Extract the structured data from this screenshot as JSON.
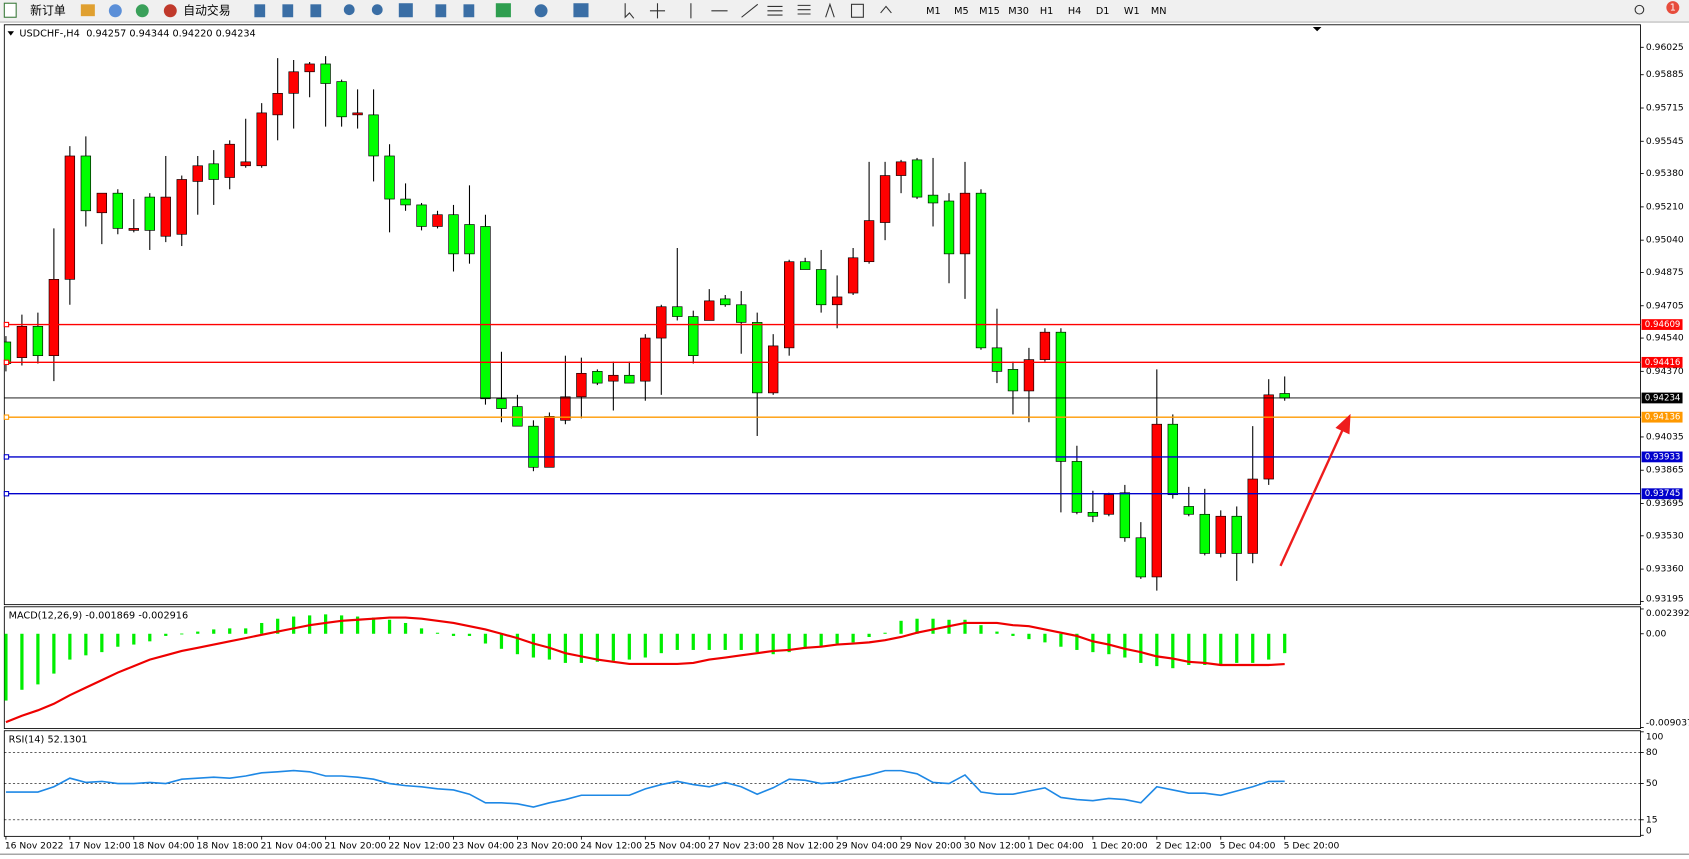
{
  "toolbar": {
    "new_order": "新订单",
    "auto_trading": "自动交易",
    "timeframes": [
      "M1",
      "M5",
      "M15",
      "M30",
      "H1",
      "H4",
      "D1",
      "W1",
      "MN"
    ],
    "notifications": "1"
  },
  "chart_data": [
    {
      "type": "candlestick",
      "title": "USDCHF-,H4",
      "subtitle": "0.94257 0.94344 0.94220 0.94234",
      "categories": [
        "16 Nov 2022",
        null,
        null,
        null,
        "17 Nov 12:00",
        null,
        null,
        null,
        "18 Nov 04:00",
        null,
        null,
        null,
        "18 Nov 18:00",
        null,
        null,
        null,
        "21 Nov 04:00",
        null,
        null,
        null,
        "21 Nov 20:00",
        null,
        null,
        null,
        "22 Nov 12:00",
        null,
        null,
        null,
        "23 Nov 04:00",
        null,
        null,
        null,
        "23 Nov 20:00",
        null,
        null,
        null,
        "24 Nov 12:00",
        null,
        null,
        null,
        "25 Nov 04:00",
        null,
        null,
        null,
        "27 Nov 23:00",
        null,
        null,
        null,
        "28 Nov 12:00",
        null,
        null,
        null,
        "29 Nov 04:00",
        null,
        null,
        null,
        "29 Nov 20:00",
        null,
        null,
        null,
        "30 Nov 12:00",
        null,
        null,
        null,
        "1 Dec 04:00",
        null,
        null,
        null,
        "1 Dec 20:00",
        null,
        null,
        null,
        "2 Dec 12:00",
        null,
        null,
        null,
        "5 Dec 04:00",
        null,
        null,
        null,
        "5 Dec 20:00"
      ],
      "open": [
        0.9452,
        0.9444,
        0.946,
        0.9445,
        0.9484,
        0.9547,
        0.9518,
        0.9528,
        0.9509,
        0.9526,
        0.9506,
        0.9507,
        0.9534,
        0.9543,
        0.9536,
        0.9542,
        0.9542,
        0.9568,
        0.9579,
        0.959,
        0.9594,
        0.9585,
        0.9568,
        0.9568,
        0.9547,
        0.9525,
        0.9522,
        0.9511,
        0.9517,
        0.9512,
        0.9511,
        0.9423,
        0.9419,
        0.9409,
        0.9388,
        0.9412,
        0.9424,
        0.9437,
        0.9432,
        0.9435,
        0.9432,
        0.9454,
        0.947,
        0.9465,
        0.9463,
        0.9474,
        0.9471,
        0.9462,
        0.9426,
        0.9449,
        0.9493,
        0.9489,
        0.9471,
        0.9477,
        0.9493,
        0.9513,
        0.9537,
        0.9545,
        0.9527,
        0.9524,
        0.9497,
        0.9528,
        0.9449,
        0.9438,
        0.9427,
        0.9443,
        0.9457,
        0.9391,
        0.9365,
        0.9364,
        0.9375,
        0.9352,
        0.9332,
        0.941,
        0.9368,
        0.9364,
        0.9344,
        0.9363,
        0.9344,
        0.9382,
        0.94257
      ],
      "high": [
        0.9455,
        0.9466,
        0.9467,
        0.951,
        0.9552,
        0.9557,
        0.9528,
        0.953,
        0.9525,
        0.9528,
        0.9547,
        0.9537,
        0.9547,
        0.955,
        0.9555,
        0.9566,
        0.9574,
        0.9597,
        0.9596,
        0.9595,
        0.9598,
        0.9586,
        0.9581,
        0.9581,
        0.9553,
        0.9533,
        0.9523,
        0.9519,
        0.9522,
        0.9532,
        0.9517,
        0.9447,
        0.9425,
        0.9412,
        0.9416,
        0.9445,
        0.9444,
        0.9438,
        0.9442,
        0.9442,
        0.9456,
        0.9471,
        0.95,
        0.9468,
        0.9479,
        0.9476,
        0.9478,
        0.9467,
        0.9456,
        0.9494,
        0.9495,
        0.9499,
        0.9486,
        0.95,
        0.9544,
        0.9544,
        0.9545,
        0.9546,
        0.9546,
        0.9528,
        0.9544,
        0.953,
        0.9469,
        0.9442,
        0.9449,
        0.9459,
        0.9459,
        0.9399,
        0.9376,
        0.9375,
        0.9379,
        0.936,
        0.9438,
        0.9415,
        0.9378,
        0.9377,
        0.9366,
        0.9368,
        0.9409,
        0.9433,
        0.94344
      ],
      "low": [
        0.9437,
        0.944,
        0.9441,
        0.9432,
        0.9471,
        0.9511,
        0.9502,
        0.9507,
        0.9508,
        0.9499,
        0.9503,
        0.9501,
        0.9517,
        0.9522,
        0.953,
        0.9541,
        0.9541,
        0.9555,
        0.9561,
        0.9577,
        0.9562,
        0.9562,
        0.9561,
        0.9534,
        0.9508,
        0.9519,
        0.9509,
        0.951,
        0.9488,
        0.9492,
        0.942,
        0.9411,
        0.9409,
        0.9386,
        0.9388,
        0.941,
        0.9413,
        0.943,
        0.9417,
        0.9431,
        0.9422,
        0.9425,
        0.9463,
        0.9441,
        0.9463,
        0.947,
        0.9446,
        0.9404,
        0.9425,
        0.9445,
        0.9489,
        0.9467,
        0.9459,
        0.9476,
        0.9492,
        0.9504,
        0.9528,
        0.9525,
        0.9511,
        0.9482,
        0.9474,
        0.9448,
        0.9431,
        0.9415,
        0.9411,
        0.9442,
        0.9365,
        0.9364,
        0.936,
        0.9363,
        0.935,
        0.9331,
        0.9325,
        0.9372,
        0.9363,
        0.9343,
        0.9342,
        0.933,
        0.9339,
        0.9379,
        0.9422
      ],
      "close": [
        0.9441,
        0.946,
        0.9445,
        0.9484,
        0.9547,
        0.9519,
        0.9528,
        0.951,
        0.951,
        0.9509,
        0.9526,
        0.9535,
        0.9542,
        0.9535,
        0.9553,
        0.9544,
        0.9569,
        0.9579,
        0.959,
        0.9594,
        0.9584,
        0.9567,
        0.9569,
        0.9547,
        0.9525,
        0.9522,
        0.9511,
        0.9517,
        0.9497,
        0.9497,
        0.9423,
        0.9418,
        0.9409,
        0.9388,
        0.9414,
        0.9424,
        0.9436,
        0.9431,
        0.9435,
        0.9431,
        0.9454,
        0.947,
        0.9465,
        0.9445,
        0.9473,
        0.9471,
        0.9462,
        0.9426,
        0.945,
        0.9493,
        0.9489,
        0.9471,
        0.9475,
        0.9495,
        0.9514,
        0.9537,
        0.9544,
        0.9526,
        0.9523,
        0.9497,
        0.9528,
        0.9449,
        0.9437,
        0.9427,
        0.9443,
        0.9457,
        0.9391,
        0.9365,
        0.9363,
        0.9374,
        0.9352,
        0.9332,
        0.941,
        0.9374,
        0.9364,
        0.9344,
        0.9363,
        0.9344,
        0.9382,
        0.9425,
        0.94234
      ],
      "up_color": "#ff0000",
      "down_color": "#00ff00",
      "price_line_color": "#000000",
      "ylim": [
        0.93184,
        0.96129
      ],
      "yticks": [
        0.96025,
        0.95885,
        0.95715,
        0.95545,
        {
          "value": 0.9538,
          "label": "0.95380"
        },
        {
          "value": 0.9521,
          "label": "0.95210"
        },
        {
          "value": 0.9504,
          "label": "0.95040"
        },
        0.94875,
        0.94705,
        {
          "value": 0.9454,
          "label": "0.94540"
        },
        {
          "value": 0.9437,
          "label": "0.94370"
        },
        0.94035,
        0.93865,
        0.93695,
        {
          "value": 0.9353,
          "label": "0.93530"
        },
        {
          "value": 0.9336,
          "label": "0.93360"
        },
        0.93195
      ],
      "levels": [
        {
          "value": 0.94609,
          "color": "#ff0000"
        },
        {
          "value": 0.94416,
          "color": "#ff0000"
        },
        {
          "value": 0.94136,
          "color": "#ff9900"
        },
        {
          "value": 0.93933,
          "color": "#0000cc"
        },
        {
          "value": 0.93745,
          "color": "#0000cc"
        }
      ]
    },
    {
      "type": "macd",
      "title": "MACD(12,26,9)",
      "color": "#00ee00",
      "signal_color": "#ee0000",
      "values": [
        -0.00644,
        -0.0054,
        -0.00488,
        -0.00384,
        -0.00249,
        -0.00208,
        -0.00177,
        -0.00125,
        -0.00104,
        -0.00073,
        -0.00021,
        2e-05,
        0.00021,
        0.00042,
        0.00052,
        0.00052,
        0.00104,
        0.00145,
        0.00166,
        0.00177,
        0.00187,
        0.00177,
        0.00166,
        0.00156,
        0.00135,
        0.00104,
        0.00052,
        0.0001,
        -0.00021,
        -0.00021,
        -0.00094,
        -0.00145,
        -0.00197,
        -0.00229,
        -0.00249,
        -0.00281,
        -0.00281,
        -0.0027,
        -0.0026,
        -0.00249,
        -0.00229,
        -0.00187,
        -0.00156,
        -0.00156,
        -0.00156,
        -0.00156,
        -0.00156,
        -0.00177,
        -0.00197,
        -0.00177,
        -0.00145,
        -0.00125,
        -0.00094,
        -0.00083,
        -0.00031,
        0.0001,
        0.00125,
        0.00145,
        0.00145,
        0.00135,
        0.00135,
        0.00083,
        0.00021,
        -0.00021,
        -0.00052,
        -0.00083,
        -0.00125,
        -0.00156,
        -0.00177,
        -0.00197,
        -0.00229,
        -0.00281,
        -0.00312,
        -0.00332,
        -0.00301,
        -0.00301,
        -0.00291,
        -0.00281,
        -0.00281,
        -0.00249,
        -0.001869
      ],
      "signal": [
        -0.00852,
        -0.0079,
        -0.00738,
        -0.00675,
        -0.00592,
        -0.00519,
        -0.00447,
        -0.00374,
        -0.00312,
        -0.00249,
        -0.00208,
        -0.00166,
        -0.00135,
        -0.00104,
        -0.00073,
        -0.00042,
        -0.0001,
        0.00021,
        0.00052,
        0.00083,
        0.00104,
        0.00125,
        0.00135,
        0.00145,
        0.00156,
        0.00156,
        0.00145,
        0.00125,
        0.00104,
        0.00073,
        0.00042,
        0,
        -0.00042,
        -0.00094,
        -0.00135,
        -0.00187,
        -0.00218,
        -0.00249,
        -0.0027,
        -0.00291,
        -0.00291,
        -0.00291,
        -0.00291,
        -0.00281,
        -0.00249,
        -0.00229,
        -0.00208,
        -0.00187,
        -0.00166,
        -0.00156,
        -0.00135,
        -0.00125,
        -0.00104,
        -0.00094,
        -0.00083,
        -0.00062,
        -0.00031,
        0.0001,
        0.00042,
        0.00073,
        0.00104,
        0.00104,
        0.00104,
        0.00083,
        0.00073,
        0.00042,
        0.0001,
        -0.00021,
        -0.00073,
        -0.00104,
        -0.00145,
        -0.00177,
        -0.00218,
        -0.00239,
        -0.0027,
        -0.00281,
        -0.00301,
        -0.00301,
        -0.00301,
        -0.00301,
        -0.002916
      ],
      "ylim": [
        -0.009037,
        0.002392
      ],
      "yticks": [
        0.002392,
        {
          "value": 0,
          "label": "0.00"
        },
        -0.009037
      ]
    },
    {
      "type": "line",
      "title": "RSI(14)",
      "color": "#1e88e5",
      "values": [
        41.8,
        41.8,
        41.8,
        46.9,
        55.2,
        51.1,
        52.1,
        50,
        50,
        51.1,
        50,
        54.2,
        55.2,
        56.2,
        55.2,
        57.3,
        60.4,
        61.4,
        62.5,
        61.4,
        57.3,
        57.3,
        56.2,
        54.2,
        50,
        48,
        46.9,
        44.9,
        43.8,
        39.7,
        31.4,
        31.4,
        30.4,
        27.3,
        31.4,
        34.5,
        38.7,
        38.7,
        38.7,
        38.7,
        44.9,
        49,
        52.1,
        49,
        46.9,
        51.1,
        46.9,
        39.7,
        45.9,
        54.2,
        53.1,
        50,
        51.1,
        55.2,
        58.3,
        62.5,
        62.5,
        59.4,
        51.1,
        50,
        58.3,
        41.8,
        39.7,
        39.7,
        42.8,
        45.9,
        36.6,
        34.5,
        33.5,
        35.6,
        34.5,
        31.4,
        46.9,
        43.8,
        40.7,
        40.7,
        38.7,
        42.8,
        46.9,
        52.1,
        52.1301
      ],
      "ylim": [
        0,
        100
      ],
      "yticks": [
        100,
        80,
        50,
        15,
        0
      ]
    }
  ]
}
